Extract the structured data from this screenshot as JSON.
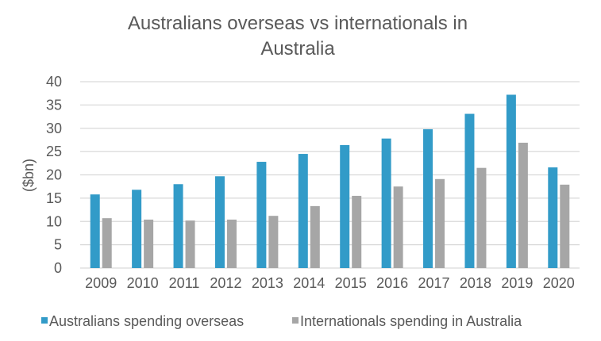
{
  "chart_data": {
    "type": "bar",
    "title_lines": [
      "Australians overseas vs internationals in",
      "Australia"
    ],
    "xlabel": "",
    "ylabel": "($bn)",
    "ylim": [
      0,
      40
    ],
    "yticks": [
      0,
      5,
      10,
      15,
      20,
      25,
      30,
      35,
      40
    ],
    "grid": true,
    "legend_position": "bottom",
    "categories": [
      "2009",
      "2010",
      "2011",
      "2012",
      "2013",
      "2014",
      "2015",
      "2016",
      "2017",
      "2018",
      "2019",
      "2020"
    ],
    "series": [
      {
        "name": "Australians spending overseas",
        "color": "#329BC8",
        "values": [
          15.8,
          16.8,
          18.0,
          19.7,
          22.8,
          24.5,
          26.4,
          27.8,
          29.8,
          33.1,
          37.2,
          21.6
        ]
      },
      {
        "name": "Internationals spending in Australia",
        "color": "#A6A6A6",
        "values": [
          10.7,
          10.4,
          10.2,
          10.4,
          11.2,
          13.3,
          15.5,
          17.5,
          19.1,
          21.5,
          26.9,
          17.9
        ]
      }
    ]
  }
}
